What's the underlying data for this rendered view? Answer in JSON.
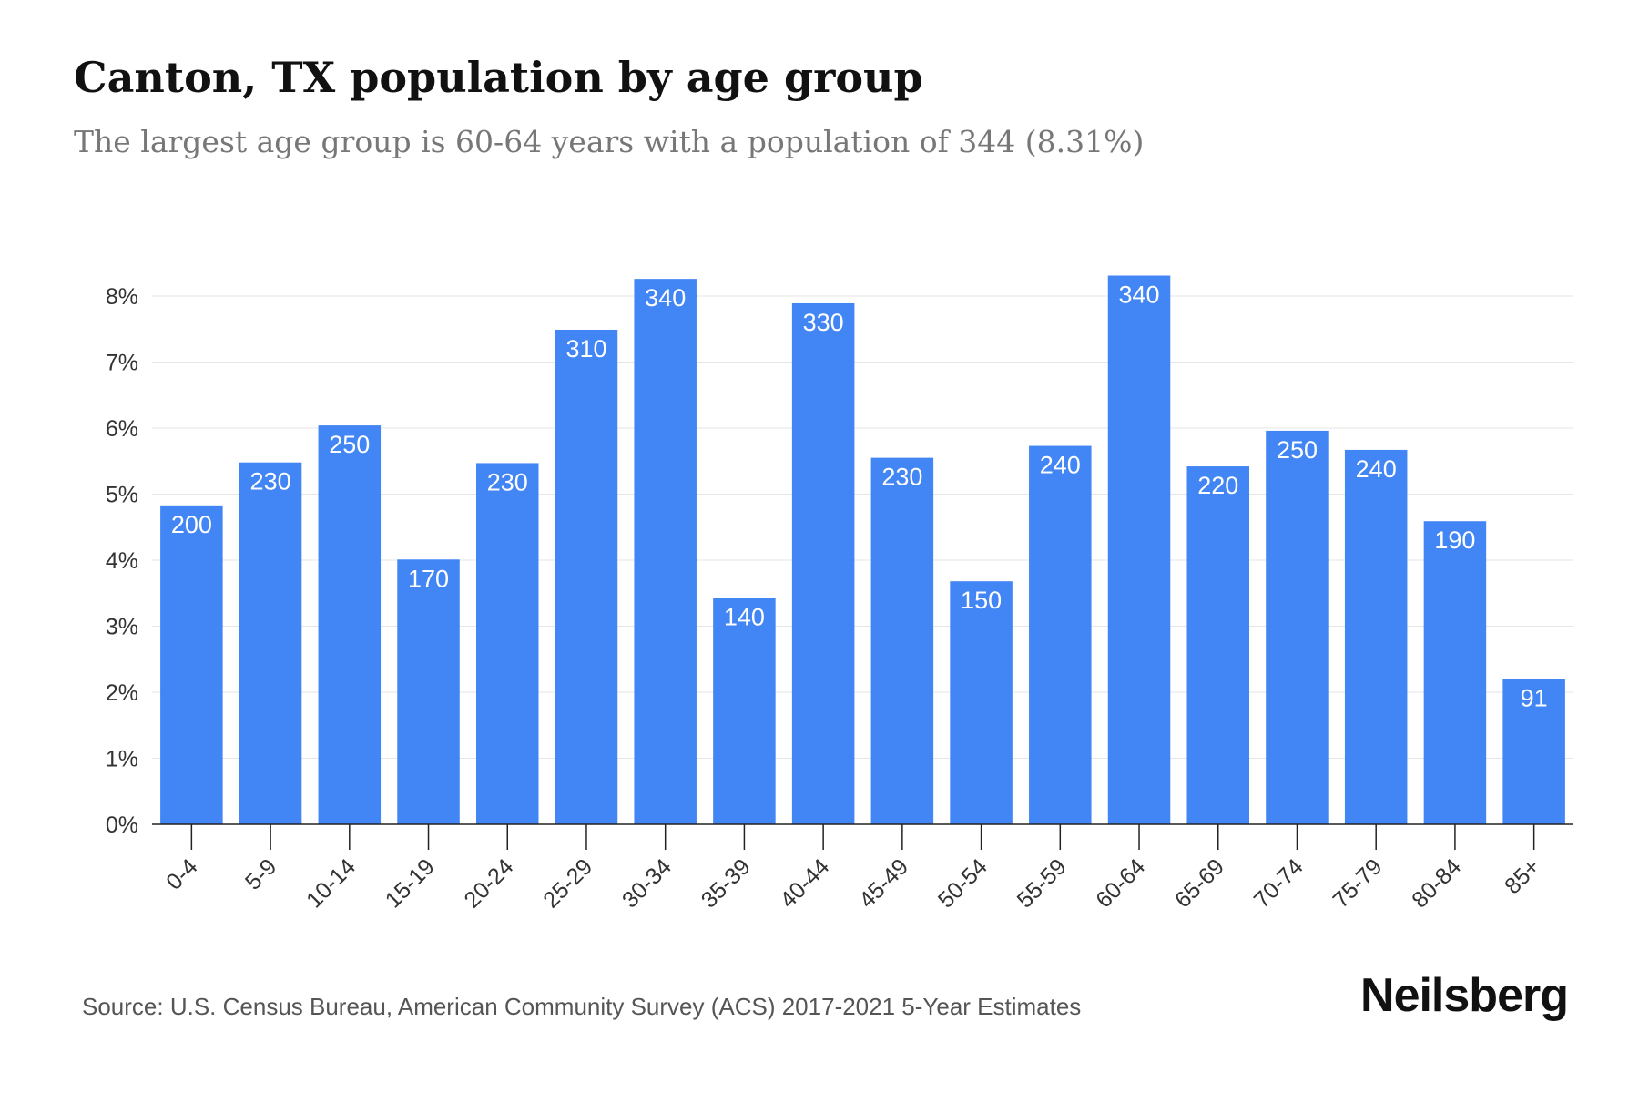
{
  "header": {
    "title": "Canton, TX population by age group",
    "subtitle": "The largest age group is 60-64 years with a population of 344 (8.31%)"
  },
  "chart_data": {
    "type": "bar",
    "categories": [
      "0-4",
      "5-9",
      "10-14",
      "15-19",
      "20-24",
      "25-29",
      "30-34",
      "35-39",
      "40-44",
      "45-49",
      "50-54",
      "55-59",
      "60-64",
      "65-69",
      "70-74",
      "75-79",
      "80-84",
      "85+"
    ],
    "values": [
      4.83,
      5.48,
      6.04,
      4.01,
      5.47,
      7.49,
      8.26,
      3.43,
      7.89,
      5.55,
      3.68,
      5.73,
      8.31,
      5.42,
      5.96,
      5.67,
      4.59,
      2.2
    ],
    "data_labels": [
      "200",
      "230",
      "250",
      "170",
      "230",
      "310",
      "340",
      "140",
      "330",
      "230",
      "150",
      "240",
      "340",
      "220",
      "250",
      "240",
      "190",
      "91"
    ],
    "y_ticks": [
      "0%",
      "1%",
      "2%",
      "3%",
      "4%",
      "5%",
      "6%",
      "7%",
      "8%"
    ],
    "ylim": [
      0,
      8
    ],
    "grid": true,
    "bar_color": "#4285f4"
  },
  "footer": {
    "source": "Source: U.S. Census Bureau, American Community Survey (ACS) 2017-2021 5-Year Estimates",
    "brand": "Neilsberg"
  }
}
